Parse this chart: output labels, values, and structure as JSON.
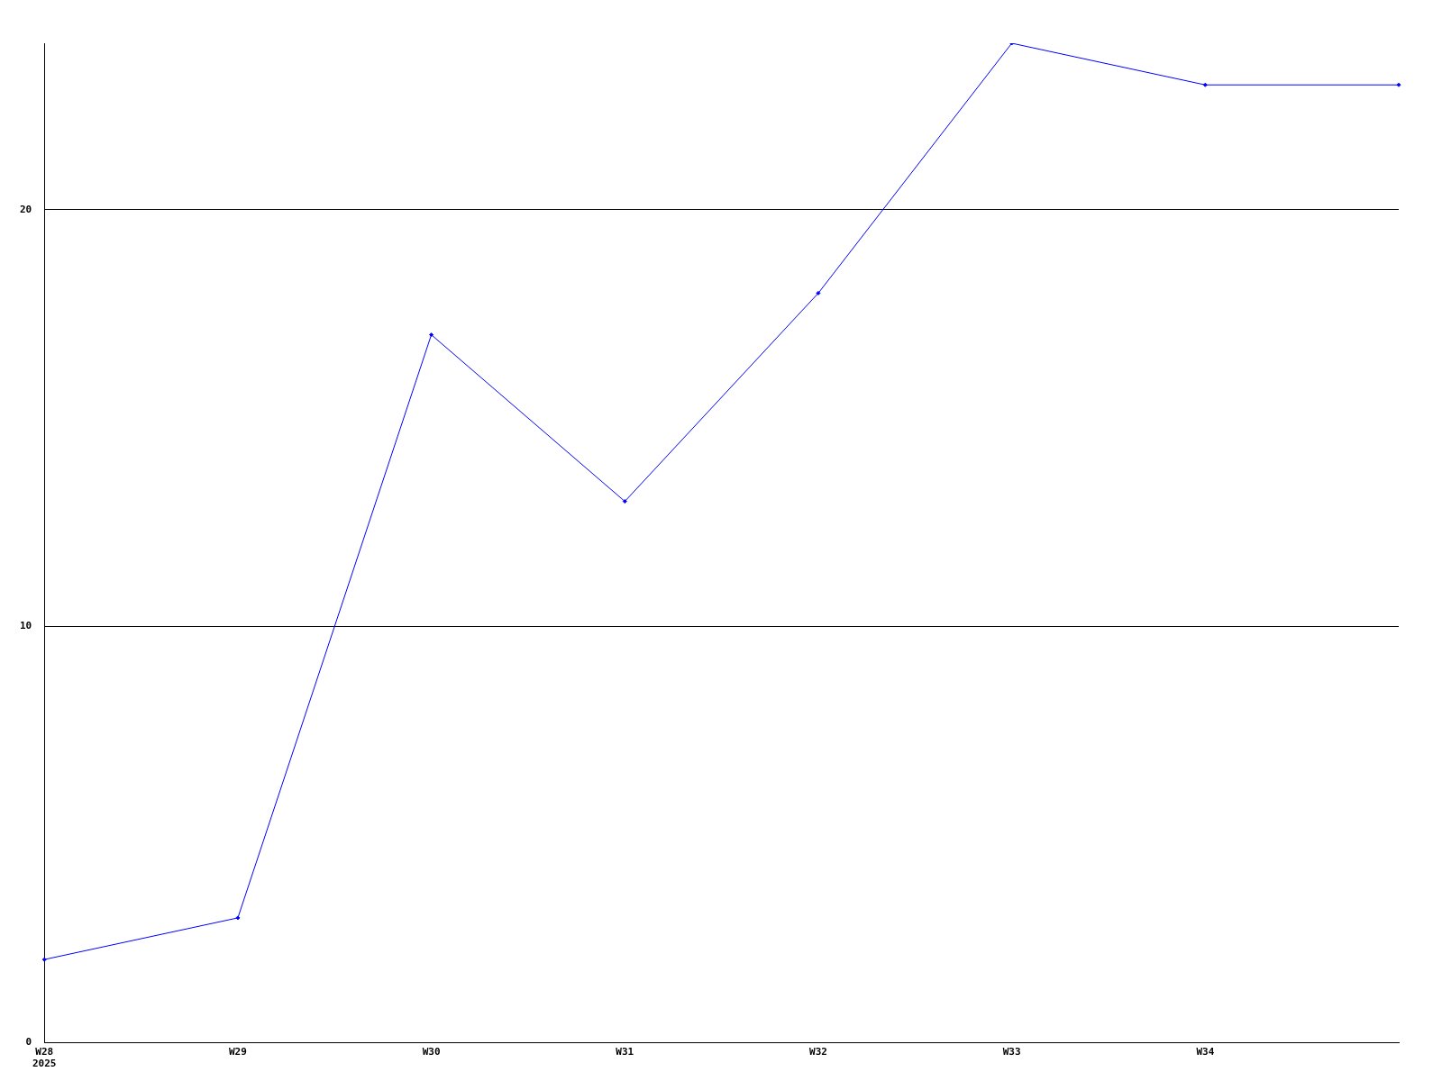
{
  "chart_data": {
    "type": "line",
    "categories": [
      "W28\n2025",
      "W29",
      "W30",
      "W31",
      "W32",
      "W33",
      "W34",
      null
    ],
    "series": [
      {
        "color": "#0000ff",
        "values": [
          2,
          3,
          17,
          13,
          18,
          24,
          23,
          23
        ]
      }
    ],
    "ylim": [
      0,
      24
    ],
    "yticks": [
      0,
      10,
      20
    ],
    "grid": "y",
    "legend": false,
    "marker": "diamond",
    "line_style": "solid"
  }
}
